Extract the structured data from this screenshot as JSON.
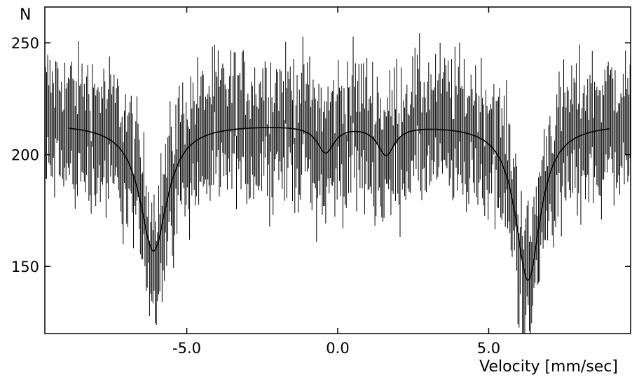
{
  "chart_data": {
    "type": "line",
    "ylabel": "N",
    "xlabel": "Velocity [mm/sec]",
    "xlim": [
      -9.7,
      9.7
    ],
    "ylim": [
      120,
      266
    ],
    "x_ticks": [
      -5.0,
      0.0,
      5.0
    ],
    "x_tick_labels": [
      "-5.0",
      "0.0",
      "5.0"
    ],
    "y_ticks": [
      150,
      200,
      250
    ],
    "y_tick_labels": [
      "150",
      "200",
      "250"
    ],
    "grid": false,
    "fit_curve": {
      "baseline": 214,
      "lines": [
        {
          "center": -6.1,
          "depth": 57,
          "width": 0.55
        },
        {
          "center": -0.4,
          "depth": 12,
          "width": 0.35
        },
        {
          "center": 1.6,
          "depth": 13,
          "width": 0.35
        },
        {
          "center": 6.3,
          "depth": 70,
          "width": 0.5
        }
      ]
    },
    "data_points": {
      "count": 512,
      "error_bar_halfwidth": 20,
      "noise_amplitude": 16
    }
  }
}
